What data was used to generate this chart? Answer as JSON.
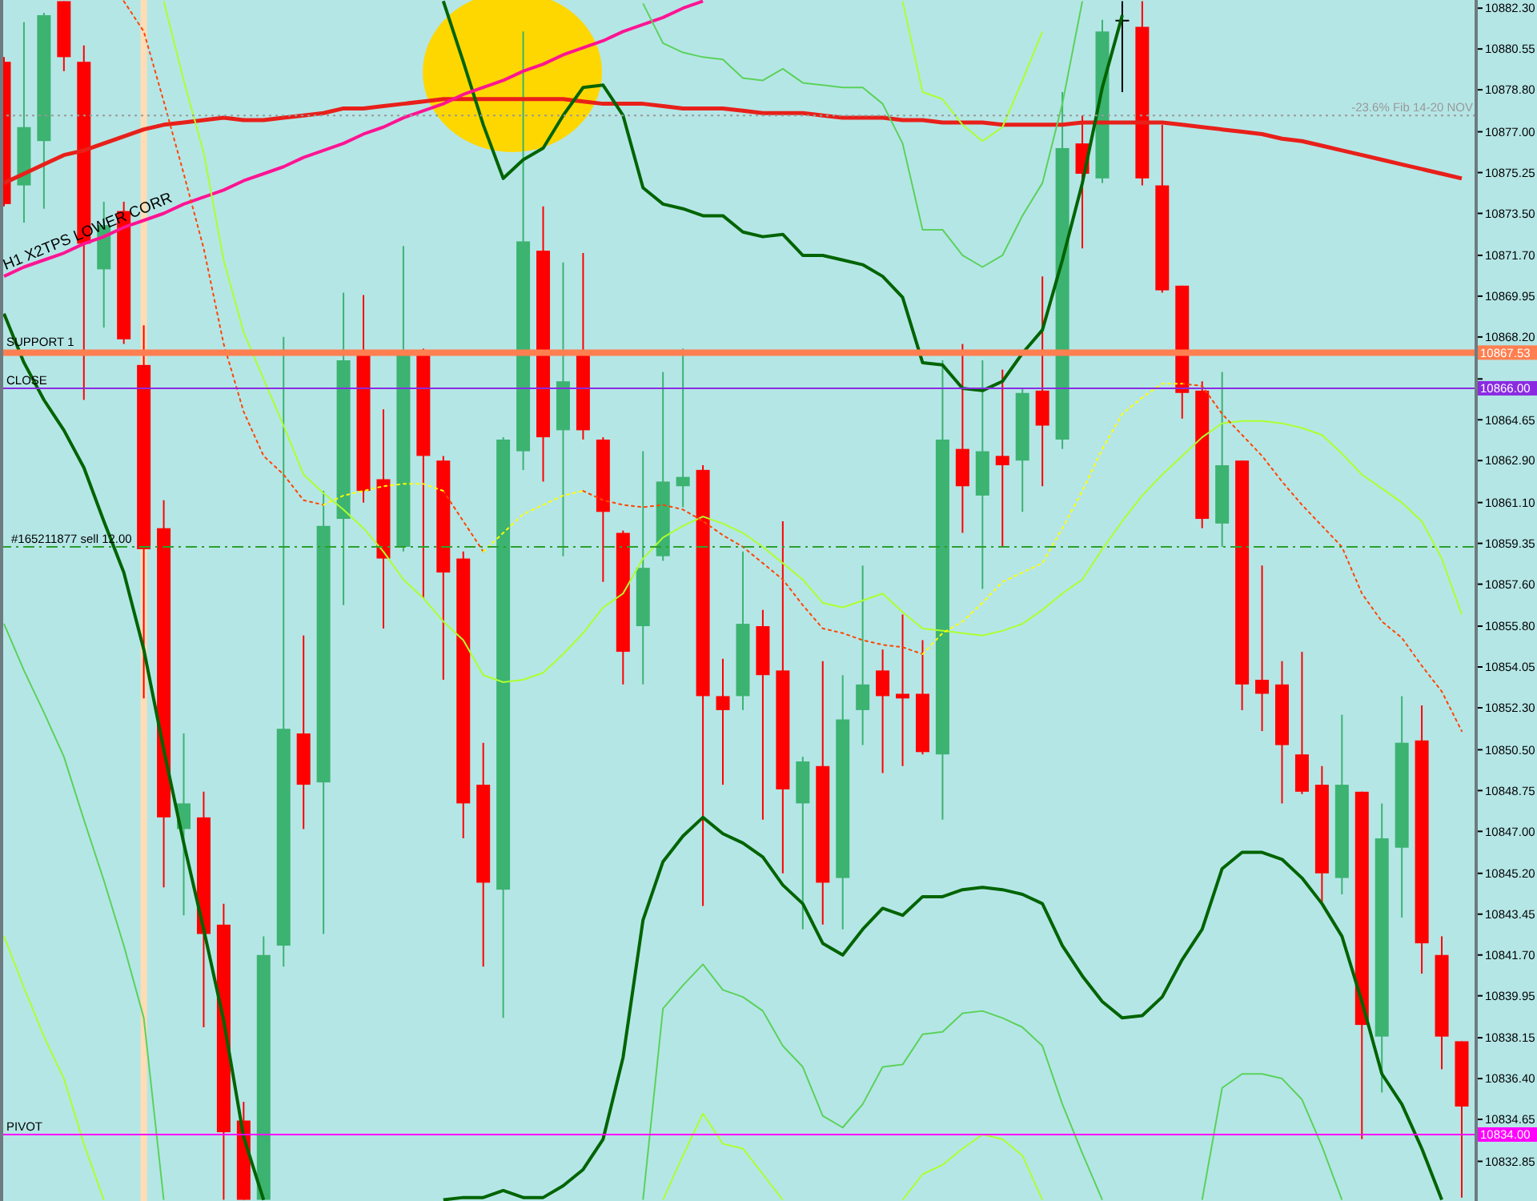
{
  "chart_data": {
    "type": "candlestick",
    "categories": [
      null,
      null,
      null,
      null,
      null,
      null,
      null,
      null,
      null,
      null,
      null,
      null,
      null,
      null,
      null,
      null,
      null,
      null,
      null,
      null,
      null,
      null,
      null,
      null,
      null,
      null,
      null,
      null,
      null,
      null,
      null,
      null,
      null,
      null,
      null,
      null,
      null,
      null,
      null,
      null,
      null,
      null,
      null,
      null,
      null,
      null,
      null,
      null,
      null,
      null,
      null,
      null,
      null,
      null,
      null,
      null,
      null,
      null,
      null,
      null,
      null,
      null,
      null,
      null,
      null,
      null,
      null,
      null,
      null,
      null,
      null,
      null,
      null,
      null
    ],
    "ohlc": [
      [
        10880.0,
        10880.2,
        10873.8,
        10873.9
      ],
      [
        10874.7,
        10881.7,
        10873.1,
        10877.2
      ],
      [
        10876.6,
        10882.1,
        10873.7,
        10882.0
      ],
      [
        10882.6,
        10882.6,
        10879.6,
        10880.2
      ],
      [
        10880.0,
        10880.7,
        10865.5,
        10872.2
      ],
      [
        10871.1,
        10874.0,
        10868.6,
        10873.0
      ],
      [
        10873.6,
        10874.0,
        10867.9,
        10868.1
      ],
      [
        10867.0,
        10868.7,
        10852.7,
        10859.1
      ],
      [
        10860.0,
        10861.2,
        10844.6,
        10847.6
      ],
      [
        10847.1,
        10851.2,
        10843.4,
        10848.2
      ],
      [
        10847.6,
        10848.7,
        10838.6,
        10842.6
      ],
      [
        10843.0,
        10843.9,
        10831.2,
        10834.1
      ],
      [
        10834.6,
        10835.4,
        10831.2,
        10831.2
      ],
      [
        10831.2,
        10842.5,
        10831.2,
        10841.7
      ],
      [
        10842.1,
        10868.2,
        10841.2,
        10851.4
      ],
      [
        10851.2,
        10855.4,
        10847.1,
        10849.0
      ],
      [
        10849.1,
        10861.6,
        10842.6,
        10860.1
      ],
      [
        10860.4,
        10870.1,
        10856.7,
        10867.2
      ],
      [
        10867.6,
        10870.0,
        10861.1,
        10861.6
      ],
      [
        10862.1,
        10865.1,
        10855.7,
        10858.7
      ],
      [
        10859.2,
        10872.1,
        10859.0,
        10867.6
      ],
      [
        10867.5,
        10867.7,
        10857.0,
        10863.1
      ],
      [
        10862.9,
        10863.1,
        10853.5,
        10858.1
      ],
      [
        10858.7,
        10859.0,
        10846.7,
        10848.2
      ],
      [
        10849.0,
        10850.8,
        10841.2,
        10844.8
      ],
      [
        10844.5,
        10863.9,
        10839.0,
        10863.8
      ],
      [
        10863.3,
        10881.3,
        10862.5,
        10872.3
      ],
      [
        10871.9,
        10873.8,
        10862.0,
        10863.9
      ],
      [
        10864.2,
        10871.4,
        10858.8,
        10866.3
      ],
      [
        10867.5,
        10871.8,
        10863.8,
        10864.2
      ],
      [
        10863.8,
        10863.9,
        10857.7,
        10860.7
      ],
      [
        10859.8,
        10859.9,
        10853.3,
        10854.7
      ],
      [
        10855.8,
        10863.3,
        10853.3,
        10858.3
      ],
      [
        10858.8,
        10866.7,
        10858.6,
        10862.0
      ],
      [
        10861.8,
        10867.7,
        10860.9,
        10862.2
      ],
      [
        10862.5,
        10862.7,
        10843.8,
        10852.8
      ],
      [
        10852.8,
        10854.4,
        10849.0,
        10852.2
      ],
      [
        10852.8,
        10859.0,
        10852.2,
        10855.9
      ],
      [
        10855.8,
        10856.5,
        10847.5,
        10853.7
      ],
      [
        10853.9,
        10860.3,
        10845.2,
        10848.8
      ],
      [
        10848.2,
        10850.2,
        10842.8,
        10850.0
      ],
      [
        10849.8,
        10854.3,
        10843.0,
        10844.8
      ],
      [
        10845.0,
        10853.7,
        10842.8,
        10851.8
      ],
      [
        10852.2,
        10858.4,
        10850.7,
        10853.3
      ],
      [
        10853.9,
        10854.8,
        10849.5,
        10852.8
      ],
      [
        10852.9,
        10856.3,
        10849.8,
        10852.7
      ],
      [
        10852.9,
        10855.2,
        10850.3,
        10850.4
      ],
      [
        10850.3,
        10867.2,
        10847.5,
        10863.8
      ],
      [
        10863.4,
        10867.9,
        10859.8,
        10861.8
      ],
      [
        10861.4,
        10867.2,
        10857.4,
        10863.3
      ],
      [
        10863.1,
        10866.8,
        10859.2,
        10862.7
      ],
      [
        10862.9,
        10866.0,
        10860.7,
        10865.8
      ],
      [
        10865.9,
        10870.8,
        10861.8,
        10864.4
      ],
      [
        10863.8,
        10878.7,
        10863.4,
        10876.3
      ],
      [
        10876.5,
        10877.7,
        10872.0,
        10875.2
      ],
      [
        10875.0,
        10881.8,
        10874.8,
        10881.3
      ],
      [
        10881.8,
        10882.6,
        10878.7,
        10881.8
      ],
      [
        10881.5,
        10882.6,
        10874.7,
        10875.0
      ],
      [
        10874.7,
        10877.3,
        10870.1,
        10870.2
      ],
      [
        10870.4,
        10870.4,
        10864.7,
        10865.8
      ],
      [
        10865.9,
        10866.3,
        10860.0,
        10860.4
      ],
      [
        10860.2,
        10866.7,
        10859.2,
        10862.7
      ],
      [
        10862.9,
        10862.9,
        10852.2,
        10853.3
      ],
      [
        10853.5,
        10858.4,
        10851.3,
        10852.9
      ],
      [
        10853.3,
        10854.3,
        10848.2,
        10850.7
      ],
      [
        10850.3,
        10854.7,
        10848.6,
        10848.7
      ],
      [
        10849.0,
        10849.8,
        10843.9,
        10845.2
      ],
      [
        10845.0,
        10852.0,
        10844.3,
        10849.0
      ],
      [
        10848.7,
        10848.7,
        10833.8,
        10838.7
      ],
      [
        10838.2,
        10848.2,
        10835.8,
        10846.7
      ],
      [
        10846.3,
        10852.8,
        10843.3,
        10850.8
      ],
      [
        10850.9,
        10852.4,
        10840.9,
        10842.2
      ],
      [
        10841.7,
        10842.5,
        10836.8,
        10838.2
      ],
      [
        10838.0,
        10838.0,
        10831.3,
        10835.2
      ]
    ],
    "colors": [
      "#ff0000",
      "#3cb371",
      "#3cb371",
      "#ff0000",
      "#ff0000",
      "#3cb371",
      "#ff0000",
      "#ff0000",
      "#ff0000",
      "#3cb371",
      "#ff0000",
      "#ff0000",
      "#ff0000",
      "#3cb371",
      "#3cb371",
      "#ff0000",
      "#3cb371",
      "#3cb371",
      "#ff0000",
      "#ff0000",
      "#3cb371",
      "#ff0000",
      "#ff0000",
      "#ff0000",
      "#ff0000",
      "#3cb371",
      "#3cb371",
      "#ff0000",
      "#3cb371",
      "#ff0000",
      "#ff0000",
      "#ff0000",
      "#3cb371",
      "#3cb371",
      "#3cb371",
      "#ff0000",
      "#ff0000",
      "#3cb371",
      "#ff0000",
      "#ff0000",
      "#3cb371",
      "#ff0000",
      "#3cb371",
      "#3cb371",
      "#ff0000",
      "#ff0000",
      "#ff0000",
      "#3cb371",
      "#ff0000",
      "#3cb371",
      "#ff0000",
      "#3cb371",
      "#ff0000",
      "#3cb371",
      "#ff0000",
      "#3cb371",
      "#000000",
      "#ff0000",
      "#ff0000",
      "#ff0000",
      "#ff0000",
      "#3cb371",
      "#ff0000",
      "#ff0000",
      "#ff0000",
      "#ff0000",
      "#ff0000",
      "#3cb371",
      "#ff0000",
      "#3cb371",
      "#3cb371",
      "#ff0000",
      "#ff0000",
      "#ff0000"
    ],
    "series": [
      {
        "type": "line",
        "color": "#e8201a",
        "values": [
          10874.8,
          10875.2,
          10875.6,
          10876.0,
          10876.2,
          10876.5,
          10876.8,
          10877.1,
          10877.3,
          10877.4,
          10877.5,
          10877.6,
          10877.5,
          10877.5,
          10877.6,
          10877.7,
          10877.8,
          10878.0,
          10878.0,
          10878.1,
          10878.2,
          10878.3,
          10878.4,
          10878.4,
          10878.4,
          10878.4,
          10878.4,
          10878.4,
          10878.4,
          10878.3,
          10878.2,
          10878.2,
          10878.2,
          10878.1,
          10878.0,
          10878.0,
          10878.0,
          10877.9,
          10877.8,
          10877.8,
          10877.8,
          10877.7,
          10877.6,
          10877.6,
          10877.6,
          10877.5,
          10877.5,
          10877.4,
          10877.4,
          10877.4,
          10877.3,
          10877.3,
          10877.3,
          10877.3,
          10877.4,
          10877.4,
          10877.4,
          10877.4,
          10877.4,
          10877.3,
          10877.2,
          10877.1,
          10877.0,
          10876.9,
          10876.7,
          10876.6,
          10876.4,
          10876.2,
          10876.0,
          10875.8,
          10875.6,
          10875.4,
          10875.2,
          10875.0
        ]
      },
      {
        "type": "line",
        "color": "#006400",
        "values": [
          null,
          null,
          null,
          null,
          null,
          null,
          null,
          null,
          null,
          null,
          null,
          null,
          null,
          null,
          null,
          null,
          null,
          null,
          null,
          null,
          null,
          null,
          10882.6,
          10880.0,
          10877.3,
          10875.0,
          10875.8,
          10876.3,
          10877.7,
          10878.9,
          10879.0,
          10877.7,
          10874.6,
          10873.9,
          10873.7,
          10873.4,
          10873.4,
          10872.7,
          10872.5,
          10872.6,
          10871.7,
          10871.7,
          10871.5,
          10871.3,
          10870.8,
          10869.9,
          10867.1,
          10867.0,
          10866.0,
          10865.9,
          10866.3,
          10867.5,
          10868.5,
          10871.5,
          10874.8,
          10878.9,
          10882.0,
          null,
          null,
          null,
          null,
          null,
          null,
          null,
          null,
          null,
          null,
          null,
          null,
          null,
          null,
          null,
          null,
          null
        ]
      },
      {
        "type": "line",
        "color": "#006400",
        "values": [
          10869.2,
          10867.1,
          10865.5,
          10864.2,
          10862.6,
          10860.3,
          10858.1,
          10854.8,
          10850.5,
          10846.5,
          10842.8,
          10838.9,
          10833.9,
          10831.2,
          null,
          null,
          null,
          null,
          null,
          null,
          null,
          null,
          10831.2,
          10831.3,
          10831.3,
          10831.6,
          10831.3,
          10831.3,
          10831.8,
          10832.5,
          10833.8,
          10837.3,
          10843.2,
          10845.7,
          10846.8,
          10847.6,
          10846.9,
          10846.5,
          10845.9,
          10844.7,
          10843.9,
          10842.2,
          10841.7,
          10842.8,
          10843.7,
          10843.4,
          10844.2,
          10844.2,
          10844.5,
          10844.6,
          10844.5,
          10844.3,
          10843.9,
          10842.1,
          10840.8,
          10839.7,
          10839.0,
          10839.1,
          10839.9,
          10841.5,
          10842.8,
          10845.4,
          10846.1,
          10846.1,
          10845.8,
          10845.0,
          10843.9,
          10842.5,
          10839.7,
          10836.6,
          10835.3,
          10833.4,
          10831.2,
          null
        ]
      },
      {
        "type": "line",
        "name": "H1 X2TPS LOWER CORR",
        "color": "#ff1493",
        "values": [
          10870.8,
          10871.2,
          10871.5,
          10871.8,
          10872.2,
          10872.5,
          10872.9,
          10873.2,
          10873.5,
          10873.9,
          10874.2,
          10874.5,
          10874.9,
          10875.2,
          10875.5,
          10875.9,
          10876.2,
          10876.5,
          10876.9,
          10877.2,
          10877.6,
          10877.9,
          10878.2,
          10878.6,
          10878.9,
          10879.2,
          10879.6,
          10879.9,
          10880.3,
          10880.6,
          10880.9,
          10881.3,
          10881.6,
          10881.9,
          10882.3,
          10882.6,
          null,
          null,
          null,
          null,
          null,
          null,
          null,
          null,
          null,
          null,
          null,
          null,
          null,
          null,
          null,
          null,
          null,
          null,
          null,
          null,
          null,
          null,
          null,
          null,
          null,
          null,
          null,
          null,
          null,
          null,
          null,
          null,
          null,
          null,
          null,
          null,
          null,
          null
        ]
      },
      {
        "type": "line",
        "color": "#5ad25a",
        "values": [
          null,
          null,
          null,
          null,
          null,
          null,
          null,
          null,
          null,
          null,
          null,
          null,
          null,
          null,
          null,
          null,
          null,
          null,
          null,
          null,
          null,
          null,
          null,
          null,
          null,
          null,
          null,
          null,
          null,
          null,
          null,
          null,
          10882.5,
          10880.8,
          10880.4,
          10880.2,
          10880.1,
          10879.3,
          10879.2,
          10879.7,
          10879.1,
          10879.0,
          10878.9,
          10878.9,
          10878.2,
          10876.5,
          10872.8,
          10872.8,
          10871.7,
          10871.2,
          10871.7,
          10873.4,
          10874.8,
          10878.2,
          10882.6,
          null,
          null,
          null,
          null,
          null,
          null,
          null,
          null,
          null,
          null,
          null,
          null,
          null,
          null,
          null,
          null,
          null,
          null,
          null
        ]
      },
      {
        "type": "line",
        "color": "#5ad25a",
        "values": [
          10855.9,
          10853.9,
          10852.1,
          10850.2,
          10847.5,
          10844.9,
          10842.1,
          10839.0,
          10831.2,
          null,
          null,
          null,
          null,
          null,
          null,
          null,
          null,
          null,
          null,
          null,
          null,
          null,
          null,
          null,
          null,
          null,
          null,
          null,
          null,
          null,
          null,
          null,
          10831.2,
          10839.4,
          10840.4,
          10841.3,
          10840.2,
          10839.9,
          10839.3,
          10837.8,
          10836.9,
          10834.8,
          10834.3,
          10835.3,
          10836.9,
          10837.0,
          10838.3,
          10838.4,
          10839.2,
          10839.3,
          10839.0,
          10838.6,
          10837.8,
          10835.3,
          10833.2,
          10831.2,
          null,
          null,
          null,
          null,
          10831.2,
          10836.0,
          10836.6,
          10836.6,
          10836.4,
          10835.5,
          10833.5,
          10831.2,
          null,
          null,
          null,
          null,
          null,
          null
        ]
      },
      {
        "type": "line",
        "color": "#adff2f",
        "values": [
          null,
          null,
          null,
          null,
          null,
          null,
          null,
          null,
          10882.6,
          10879.2,
          10876.1,
          10871.5,
          10868.4,
          10866.4,
          10864.4,
          10862.3,
          10861.5,
          10860.8,
          10860.0,
          10859.0,
          10857.8,
          10857.0,
          10856.0,
          10855.2,
          10853.7,
          10853.4,
          10853.5,
          10853.8,
          10854.6,
          10855.5,
          10856.6,
          10857.2,
          10858.7,
          10859.6,
          10860.1,
          10860.5,
          10860.2,
          10859.8,
          10859.2,
          10858.5,
          10857.8,
          10856.8,
          10856.6,
          10856.9,
          10857.2,
          10856.4,
          10855.7,
          10855.6,
          10855.5,
          10855.4,
          10855.6,
          10855.9,
          10856.5,
          10857.2,
          10857.8,
          10859.1,
          10860.3,
          10861.4,
          10862.3,
          10863.1,
          10863.9,
          10864.5,
          10864.6,
          10864.6,
          10864.5,
          10864.3,
          10864.0,
          10863.2,
          10862.3,
          10861.7,
          10861.1,
          10860.3,
          10858.7,
          10856.3
        ]
      },
      {
        "type": "line",
        "color": "#adff2f",
        "values": [
          null,
          null,
          null,
          null,
          null,
          null,
          null,
          null,
          null,
          null,
          null,
          null,
          null,
          null,
          null,
          null,
          null,
          null,
          null,
          null,
          null,
          null,
          null,
          null,
          null,
          null,
          null,
          null,
          null,
          null,
          null,
          null,
          null,
          null,
          null,
          null,
          null,
          null,
          null,
          null,
          null,
          null,
          null,
          null,
          null,
          10882.6,
          10878.7,
          10878.4,
          10877.3,
          10876.6,
          10877.2,
          10879.2,
          10881.3,
          null,
          null,
          null,
          null,
          null,
          null,
          null,
          null,
          null,
          null,
          null,
          null,
          null,
          null,
          null,
          null,
          null,
          null,
          null,
          null,
          null
        ]
      },
      {
        "type": "line",
        "color": "#adff2f",
        "values": [
          10842.5,
          10840.3,
          10838.2,
          10836.4,
          10833.6,
          10831.2,
          null,
          null,
          null,
          null,
          null,
          null,
          null,
          null,
          null,
          null,
          null,
          null,
          null,
          null,
          null,
          null,
          null,
          null,
          null,
          null,
          null,
          null,
          null,
          null,
          null,
          null,
          null,
          10831.2,
          10833.1,
          10834.9,
          10833.6,
          10833.4,
          10832.3,
          10831.2,
          null,
          null,
          null,
          null,
          null,
          10831.2,
          10832.3,
          10832.7,
          10833.4,
          10834.0,
          10833.8,
          10833.1,
          10831.2,
          null,
          null,
          null,
          null,
          null,
          null,
          null,
          null,
          null,
          null,
          null,
          null,
          null,
          null,
          null,
          null,
          null,
          null,
          null,
          null,
          null
        ]
      },
      {
        "type": "line",
        "color": "#ff4500",
        "line_style": "dotted",
        "values": [
          null,
          null,
          null,
          null,
          null,
          null,
          10882.6,
          10881.3,
          10878.3,
          10875.2,
          10872.0,
          10867.9,
          10865.0,
          10863.1,
          10862.3,
          10861.2,
          10861.0,
          null,
          null,
          null,
          null,
          null,
          10861.6,
          10860.3,
          10859.0,
          null,
          null,
          null,
          null,
          10861.6,
          10861.2,
          10861.0,
          10860.9,
          10861.0,
          10860.8,
          10860.3,
          10859.7,
          10859.2,
          10858.5,
          10857.8,
          10856.7,
          10855.7,
          10855.5,
          10855.2,
          10855.0,
          10854.9,
          10854.6,
          null,
          null,
          null,
          null,
          null,
          null,
          null,
          null,
          null,
          null,
          null,
          null,
          10866.2,
          10866.1,
          10864.9,
          10864.0,
          10863.1,
          10862.0,
          10861.0,
          10860.1,
          10859.2,
          10857.2,
          10856.0,
          10855.3,
          10854.1,
          10853.0,
          10851.3
        ]
      },
      {
        "type": "line",
        "color": "#ffff00",
        "line_style": "dotted",
        "values": [
          null,
          null,
          null,
          null,
          null,
          null,
          null,
          null,
          null,
          null,
          null,
          null,
          null,
          null,
          null,
          null,
          10861.0,
          10861.4,
          10861.6,
          10861.8,
          10861.9,
          10861.9,
          10861.6,
          null,
          10859.0,
          10859.8,
          10860.6,
          10861.0,
          10861.4,
          10861.6,
          null,
          null,
          null,
          null,
          null,
          null,
          null,
          null,
          null,
          null,
          null,
          null,
          null,
          null,
          null,
          null,
          10854.6,
          10855.5,
          10856.0,
          10856.8,
          10857.7,
          10858.1,
          10858.5,
          10860.0,
          10861.6,
          10863.4,
          10864.9,
          10865.6,
          10866.2,
          10866.2,
          null,
          null,
          null,
          null,
          null,
          null,
          null,
          null,
          null,
          null,
          null,
          null,
          null,
          null
        ]
      }
    ],
    "ylim": [
      10831.15,
      10882.65
    ],
    "yticks": [
      {
        "value": 10882.3,
        "label": "10882.30"
      },
      {
        "value": 10880.55,
        "label": "10880.55"
      },
      {
        "value": 10878.8,
        "label": "10878.80"
      },
      {
        "value": 10877,
        "label": "10877.00"
      },
      {
        "value": 10875.25,
        "label": "10875.25"
      },
      {
        "value": 10873.5,
        "label": "10873.50"
      },
      {
        "value": 10871.7,
        "label": "10871.70"
      },
      {
        "value": 10869.95,
        "label": "10869.95"
      },
      {
        "value": 10868.2,
        "label": "10868.20"
      },
      {
        "value": 10866.4,
        "label": null
      },
      {
        "value": 10864.65,
        "label": "10864.65"
      },
      {
        "value": 10862.9,
        "label": "10862.90"
      },
      {
        "value": 10861.1,
        "label": "10861.10"
      },
      {
        "value": 10859.35,
        "label": "10859.35"
      },
      {
        "value": 10857.6,
        "label": "10857.60"
      },
      {
        "value": 10855.8,
        "label": "10855.80"
      },
      {
        "value": 10854.05,
        "label": "10854.05"
      },
      {
        "value": 10852.3,
        "label": "10852.30"
      },
      {
        "value": 10850.5,
        "label": "10850.50"
      },
      {
        "value": 10848.75,
        "label": "10848.75"
      },
      {
        "value": 10847,
        "label": "10847.00"
      },
      {
        "value": 10845.2,
        "label": "10845.20"
      },
      {
        "value": 10843.45,
        "label": "10843.45"
      },
      {
        "value": 10841.7,
        "label": "10841.70"
      },
      {
        "value": 10839.95,
        "label": "10839.95"
      },
      {
        "value": 10838.15,
        "label": "10838.15"
      },
      {
        "value": 10836.4,
        "label": "10836.40"
      },
      {
        "value": 10834.65,
        "label": "10834.65"
      },
      {
        "value": 10832.85,
        "label": "10832.85"
      }
    ],
    "tick_labels": "y",
    "ref_lines": [
      {
        "axis": "y",
        "value": 10867.53,
        "label": "SUPPORT 1",
        "color": "#ff7f50"
      },
      {
        "axis": "y",
        "value": 10866.0,
        "label": "CLOSE",
        "color": "#8a2be2"
      },
      {
        "axis": "y",
        "value": 10859.2,
        "label": "#165211877 sell 12.00",
        "color": "#2ca02c",
        "line_style": "dashdot"
      },
      {
        "axis": "y",
        "value": 10834.0,
        "label": "PIVOT",
        "color": "#ff00ff"
      },
      {
        "axis": "y",
        "value": 10877.7,
        "label": "-23.6%  Fib 14-20  NOV",
        "color": "#999999",
        "line_style": "dotted"
      }
    ],
    "annotations": [
      "10867.53",
      "10866.00",
      "10834.00"
    ]
  }
}
